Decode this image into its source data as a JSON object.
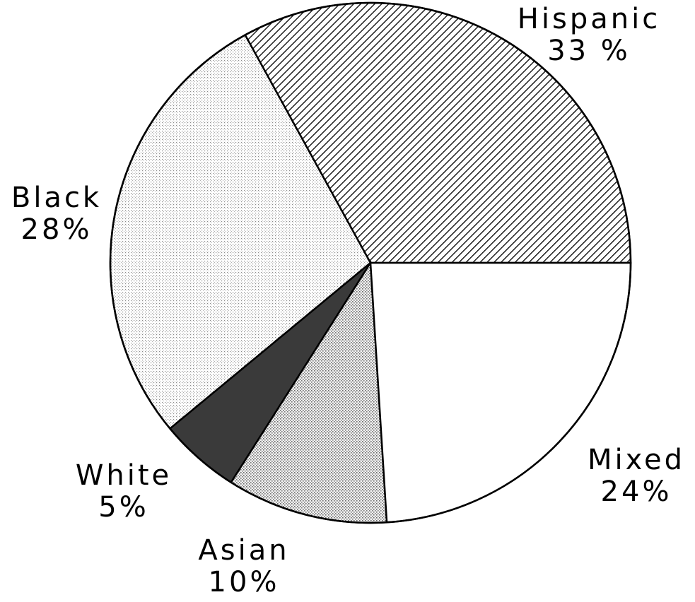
{
  "chart_data": {
    "type": "pie",
    "title": "",
    "start_angle_deg": 0,
    "direction": "counterclockwise",
    "slices": [
      {
        "label": "Hispanic",
        "value": 33,
        "value_label": "33 %",
        "fill": "hatch"
      },
      {
        "label": "Black",
        "value": 28,
        "value_label": "28%",
        "fill": "dots-light"
      },
      {
        "label": "White",
        "value": 5,
        "value_label": "5%",
        "fill": "dark"
      },
      {
        "label": "Asian",
        "value": 10,
        "value_label": "10%",
        "fill": "dots-medium"
      },
      {
        "label": "Mixed",
        "value": 24,
        "value_label": "24%",
        "fill": "white"
      }
    ]
  },
  "colors": {
    "outline": "#000000",
    "background": "#ffffff",
    "dark_fill": "#3a3a3a"
  }
}
